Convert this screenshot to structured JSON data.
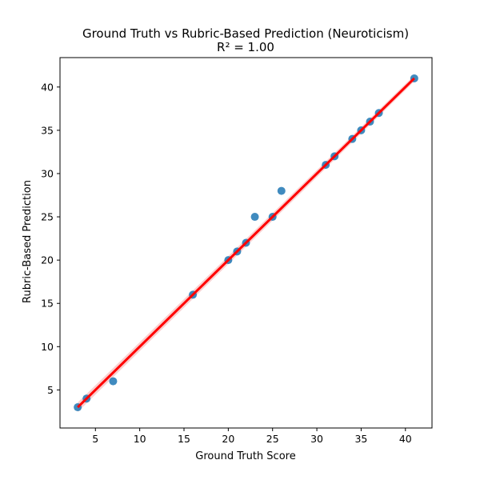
{
  "chart_data": {
    "type": "scatter",
    "title": "Ground Truth vs Rubric-Based Prediction (Neuroticism)",
    "subtitle": "R² = 1.00",
    "xlabel": "Ground Truth Score",
    "ylabel": "Rubric-Based Prediction",
    "xlim": [
      1,
      43
    ],
    "ylim": [
      0.6,
      43.4
    ],
    "xticks": [
      5,
      10,
      15,
      20,
      25,
      30,
      35,
      40
    ],
    "yticks": [
      5,
      10,
      15,
      20,
      25,
      30,
      35,
      40
    ],
    "grid": false,
    "points": [
      {
        "x": 3,
        "y": 3
      },
      {
        "x": 4,
        "y": 4
      },
      {
        "x": 7,
        "y": 6
      },
      {
        "x": 16,
        "y": 16
      },
      {
        "x": 20,
        "y": 20
      },
      {
        "x": 21,
        "y": 21
      },
      {
        "x": 22,
        "y": 22
      },
      {
        "x": 23,
        "y": 25
      },
      {
        "x": 25,
        "y": 25
      },
      {
        "x": 26,
        "y": 28
      },
      {
        "x": 31,
        "y": 31
      },
      {
        "x": 32,
        "y": 32
      },
      {
        "x": 34,
        "y": 34
      },
      {
        "x": 35,
        "y": 35
      },
      {
        "x": 36,
        "y": 36
      },
      {
        "x": 37,
        "y": 37
      },
      {
        "x": 41,
        "y": 41
      }
    ],
    "regression": {
      "x_start": 3,
      "x_end": 41,
      "slope": 1.0,
      "intercept": 0.0
    },
    "colors": {
      "points": "#1f77b4",
      "regression_line": "#ff0000",
      "confidence_band": "#f4a0a0"
    }
  }
}
